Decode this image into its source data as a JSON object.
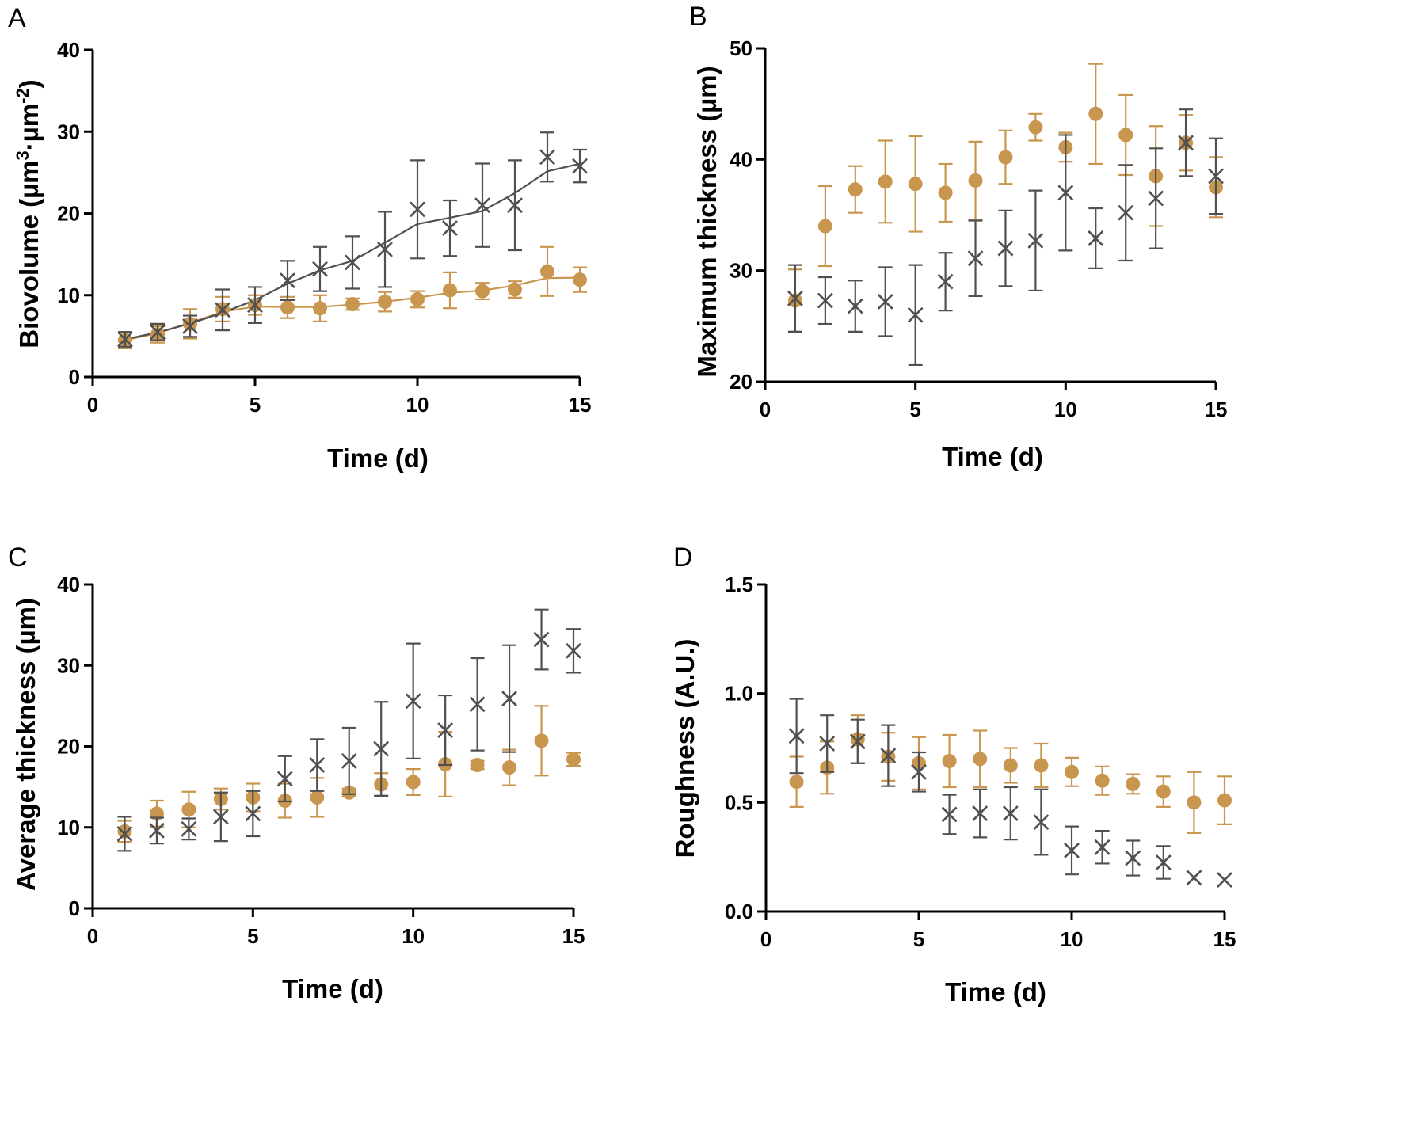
{
  "colors": {
    "circle": "#C8964E",
    "cross": "#505050"
  },
  "chart_data": [
    {
      "type": "scatter",
      "panel": "A",
      "xlabel": "Time (d)",
      "ylabel_parts": [
        "Biovolume (µm",
        "3",
        "·µm",
        "-2",
        ")"
      ],
      "xlim": [
        0,
        15
      ],
      "ylim": [
        0,
        40
      ],
      "xticks": [
        0,
        5,
        10,
        15
      ],
      "yticks": [
        0,
        10,
        20,
        30,
        40
      ],
      "x": [
        1,
        2,
        3,
        4,
        5,
        6,
        7,
        8,
        9,
        10,
        11,
        12,
        13,
        14,
        15
      ],
      "series": [
        {
          "name": "circle",
          "marker": "circle",
          "fit": true,
          "values": [
            4.5,
            5.2,
            6.5,
            8.3,
            8.8,
            8.5,
            8.4,
            8.9,
            9.2,
            9.5,
            10.6,
            10.5,
            10.7,
            12.9,
            11.9
          ],
          "errors": [
            1.0,
            1.0,
            1.8,
            1.5,
            1.2,
            1.3,
            1.6,
            0.7,
            1.2,
            1.0,
            2.2,
            1.0,
            1.0,
            3.0,
            1.5
          ]
        },
        {
          "name": "cross",
          "marker": "cross",
          "fit": true,
          "values": [
            4.6,
            5.5,
            6.2,
            8.2,
            8.8,
            11.8,
            13.2,
            14.0,
            15.6,
            20.5,
            18.2,
            21.0,
            21.0,
            26.9,
            25.8
          ],
          "errors": [
            0.9,
            1.0,
            1.3,
            2.5,
            2.2,
            2.4,
            2.7,
            3.2,
            4.6,
            6.0,
            3.4,
            5.1,
            5.5,
            3.0,
            2.0
          ]
        }
      ]
    },
    {
      "type": "scatter",
      "panel": "B",
      "xlabel": "Time (d)",
      "ylabel": "Maximum thickness (µm)",
      "xlim": [
        0,
        15
      ],
      "ylim": [
        20,
        50
      ],
      "xticks": [
        0,
        5,
        10,
        15
      ],
      "yticks": [
        20,
        30,
        40,
        50
      ],
      "x": [
        1,
        2,
        3,
        4,
        5,
        6,
        7,
        8,
        9,
        10,
        11,
        12,
        13,
        14,
        15
      ],
      "series": [
        {
          "name": "circle",
          "marker": "circle",
          "values": [
            27.3,
            34.0,
            37.3,
            38.0,
            37.8,
            37.0,
            38.1,
            40.2,
            42.9,
            41.1,
            44.1,
            42.2,
            38.5,
            41.5,
            37.5
          ],
          "errors": [
            2.8,
            3.6,
            2.1,
            3.7,
            4.3,
            2.6,
            3.5,
            2.4,
            1.2,
            1.3,
            4.5,
            3.6,
            4.5,
            2.5,
            2.7
          ]
        },
        {
          "name": "cross",
          "marker": "cross",
          "values": [
            27.5,
            27.3,
            26.8,
            27.2,
            26.0,
            29.0,
            31.1,
            32.0,
            32.7,
            37.0,
            32.9,
            35.2,
            36.5,
            41.5,
            38.5
          ],
          "errors": [
            3.0,
            2.1,
            2.3,
            3.1,
            4.5,
            2.6,
            3.4,
            3.4,
            4.5,
            5.2,
            2.7,
            4.3,
            4.5,
            3.0,
            3.4
          ]
        }
      ]
    },
    {
      "type": "scatter",
      "panel": "C",
      "xlabel": "Time (d)",
      "ylabel": "Average thickness (µm)",
      "xlim": [
        0,
        15
      ],
      "ylim": [
        0,
        40
      ],
      "xticks": [
        0,
        5,
        10,
        15
      ],
      "yticks": [
        0,
        10,
        20,
        30,
        40
      ],
      "x": [
        1,
        2,
        3,
        4,
        5,
        6,
        7,
        8,
        9,
        10,
        11,
        12,
        13,
        14,
        15
      ],
      "series": [
        {
          "name": "circle",
          "marker": "circle",
          "values": [
            9.5,
            11.7,
            12.2,
            13.5,
            13.7,
            13.3,
            13.7,
            14.3,
            15.3,
            15.6,
            17.8,
            17.7,
            17.4,
            20.7,
            18.4
          ],
          "errors": [
            1.3,
            1.6,
            2.2,
            1.3,
            1.7,
            2.1,
            2.4,
            0.5,
            1.4,
            1.6,
            4.0,
            0.5,
            2.2,
            4.3,
            0.8
          ]
        },
        {
          "name": "cross",
          "marker": "cross",
          "values": [
            9.2,
            9.6,
            9.8,
            11.3,
            11.7,
            16.0,
            17.7,
            18.2,
            19.7,
            25.6,
            22.0,
            25.2,
            25.9,
            33.2,
            31.8
          ],
          "errors": [
            2.1,
            1.6,
            1.3,
            3.0,
            2.8,
            2.8,
            3.2,
            4.1,
            5.8,
            7.1,
            4.3,
            5.7,
            6.6,
            3.7,
            2.7
          ]
        }
      ]
    },
    {
      "type": "scatter",
      "panel": "D",
      "xlabel": "Time (d)",
      "ylabel": "Roughness (A.U.)",
      "xlim": [
        0,
        15
      ],
      "ylim": [
        0.0,
        1.5
      ],
      "xticks": [
        0,
        5,
        10,
        15
      ],
      "yticks": [
        "0.0",
        "0.5",
        "1.0",
        "1.5"
      ],
      "x": [
        1,
        2,
        3,
        4,
        5,
        6,
        7,
        8,
        9,
        10,
        11,
        12,
        13,
        14,
        15
      ],
      "series": [
        {
          "name": "circle",
          "marker": "circle",
          "values": [
            0.595,
            0.66,
            0.79,
            0.71,
            0.68,
            0.69,
            0.7,
            0.67,
            0.67,
            0.64,
            0.6,
            0.585,
            0.55,
            0.5,
            0.51
          ],
          "errors": [
            0.115,
            0.12,
            0.11,
            0.11,
            0.12,
            0.12,
            0.13,
            0.08,
            0.1,
            0.065,
            0.065,
            0.045,
            0.07,
            0.14,
            0.11
          ]
        },
        {
          "name": "cross",
          "marker": "cross",
          "values": [
            0.805,
            0.77,
            0.78,
            0.715,
            0.64,
            0.445,
            0.45,
            0.45,
            0.41,
            0.28,
            0.295,
            0.245,
            0.225,
            0.155,
            0.145
          ],
          "errors": [
            0.17,
            0.13,
            0.1,
            0.14,
            0.09,
            0.09,
            0.11,
            0.12,
            0.15,
            0.11,
            0.075,
            0.08,
            0.075,
            0,
            0
          ]
        }
      ]
    }
  ]
}
